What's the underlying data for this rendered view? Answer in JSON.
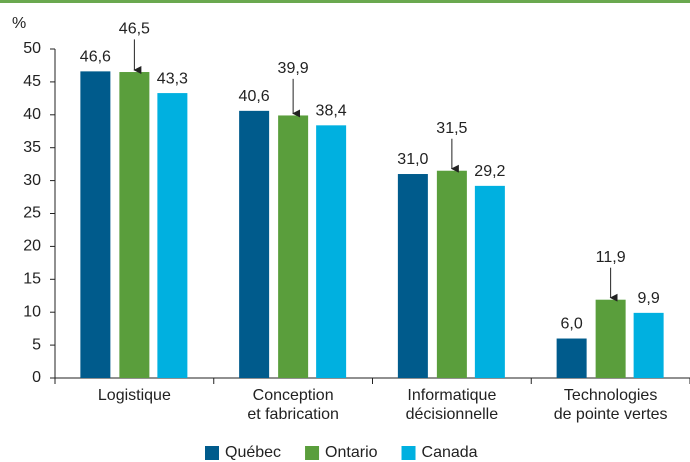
{
  "chart_data": {
    "type": "bar",
    "y_label": "%",
    "categories": [
      "Logistique",
      "Conception\net fabrication",
      "Informatique\ndécisionnelle",
      "Technologies\nde pointe vertes"
    ],
    "series": [
      {
        "name": "Québec",
        "color": "#005b8c",
        "values": [
          46.6,
          40.6,
          31.0,
          6.0
        ],
        "value_labels": [
          "46,6",
          "40,6",
          "31,0",
          "6,0"
        ]
      },
      {
        "name": "Ontario",
        "color": "#5a9e3c",
        "values": [
          46.5,
          39.9,
          31.5,
          11.9
        ],
        "value_labels": [
          "46,5",
          "39,9",
          "31,5",
          "11,9"
        ]
      },
      {
        "name": "Canada",
        "color": "#00b0e0",
        "values": [
          43.3,
          38.4,
          29.2,
          9.9
        ],
        "value_labels": [
          "43,3",
          "38,4",
          "29,2",
          "9,9"
        ]
      }
    ],
    "ylim": [
      0,
      50
    ],
    "yticks": [
      0,
      5,
      10,
      15,
      20,
      25,
      30,
      35,
      40,
      45,
      50
    ],
    "legend": "bottom"
  }
}
